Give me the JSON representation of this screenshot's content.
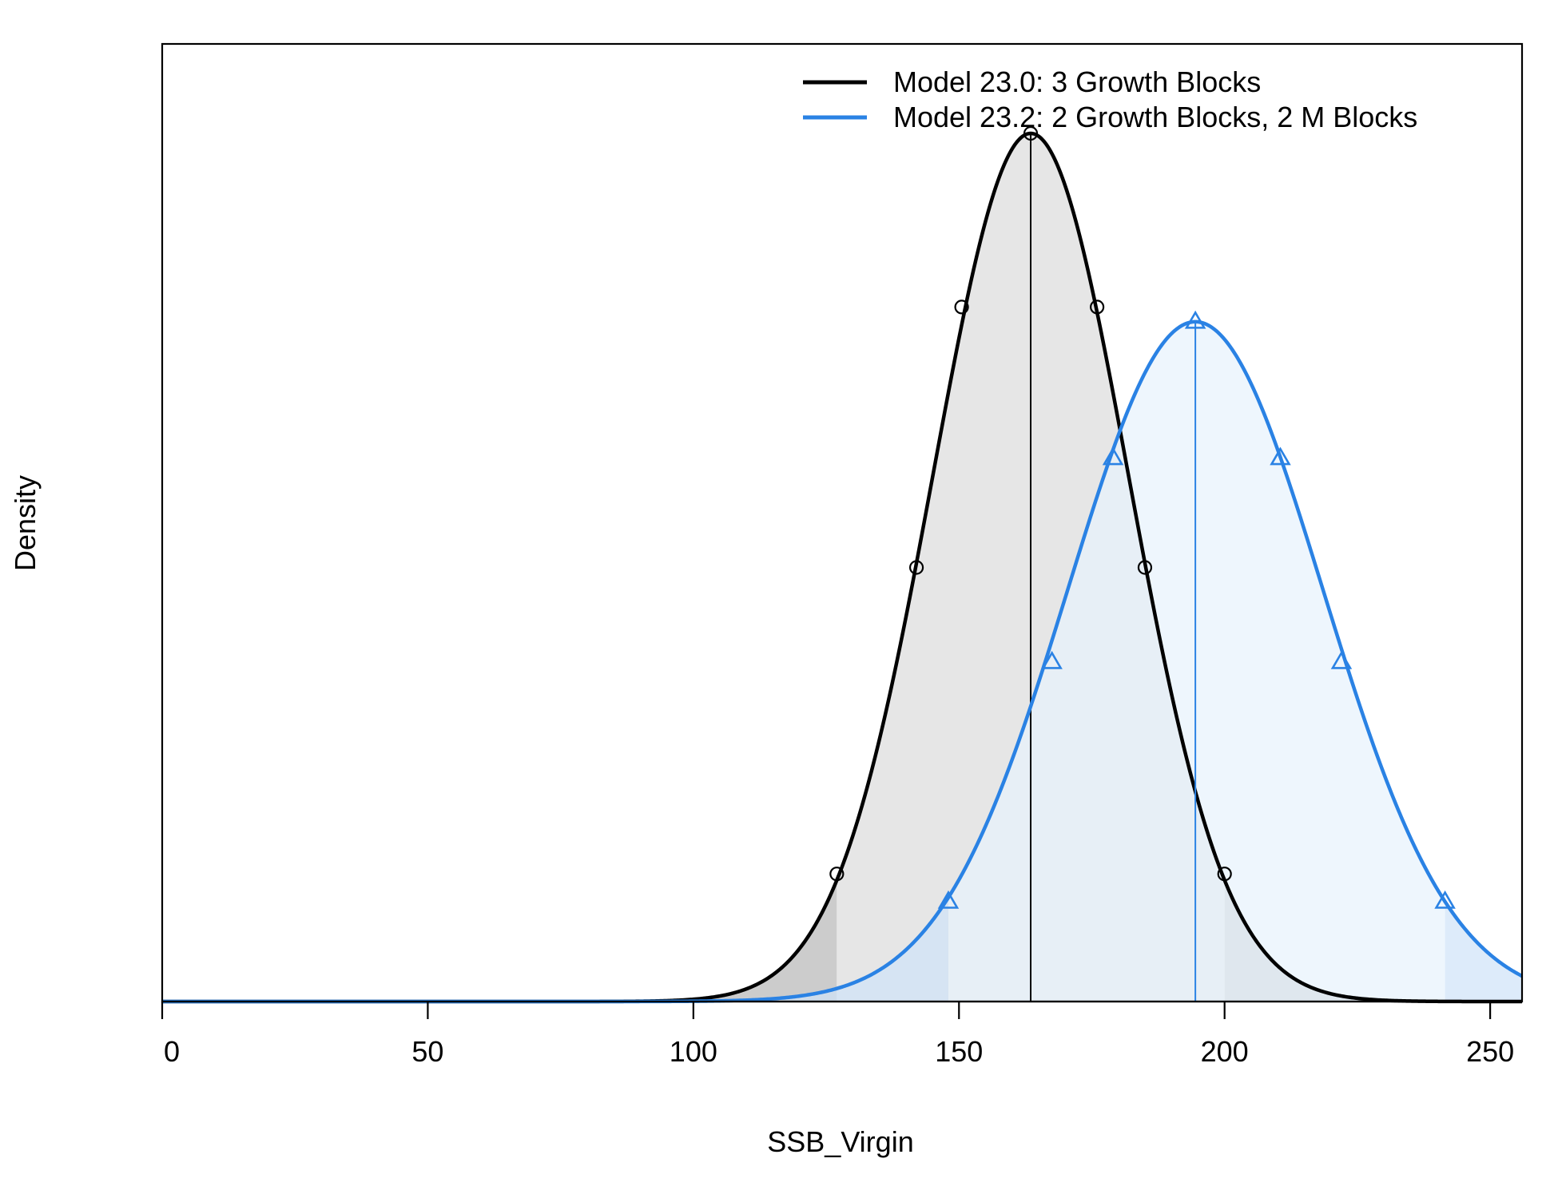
{
  "chart_data": {
    "type": "area",
    "title": "",
    "xlabel": "SSB_Virgin",
    "ylabel": "Density",
    "xlim": [
      0,
      256
    ],
    "ylim": [
      0,
      1
    ],
    "x_ticks": [
      0,
      50,
      100,
      150,
      200,
      250
    ],
    "x_tick_labels": [
      "0",
      "50",
      "100",
      "150",
      "200",
      "250"
    ],
    "y_ticks_shown": false,
    "grid": false,
    "legend_position": "top-right",
    "y_units": "relative density (peak of Model 23.0 = 1)",
    "series": [
      {
        "name": "Model 23.0: 3 Growth Blocks",
        "color": "#000000",
        "fill": "#e6e6e6",
        "tail_fill": "#cccccc",
        "distribution": "normal",
        "mean": 163.5,
        "sd": 18.4,
        "peak_density": 1.0,
        "interval_95": [
          127,
          200
        ],
        "marker": "circle",
        "marker_x": [
          127,
          142,
          150.5,
          163.5,
          176,
          185,
          200
        ],
        "marker_y": [
          0.147,
          0.5,
          0.8,
          1.0,
          0.8,
          0.5,
          0.147
        ]
      },
      {
        "name": "Model 23.2: 2 Growth Blocks, 2 M Blocks",
        "color": "#2a82e4",
        "fill": "#e7f2fc",
        "tail_fill": "#cfe3f8",
        "distribution": "normal",
        "mean": 194.5,
        "sd": 24.0,
        "peak_density": 0.783,
        "interval_95": [
          148,
          241.5
        ],
        "marker": "triangle",
        "marker_x": [
          148,
          167.5,
          179,
          194.5,
          210.5,
          222,
          241.5
        ],
        "marker_y": [
          0.115,
          0.391,
          0.626,
          0.783,
          0.626,
          0.391,
          0.115
        ]
      }
    ]
  }
}
